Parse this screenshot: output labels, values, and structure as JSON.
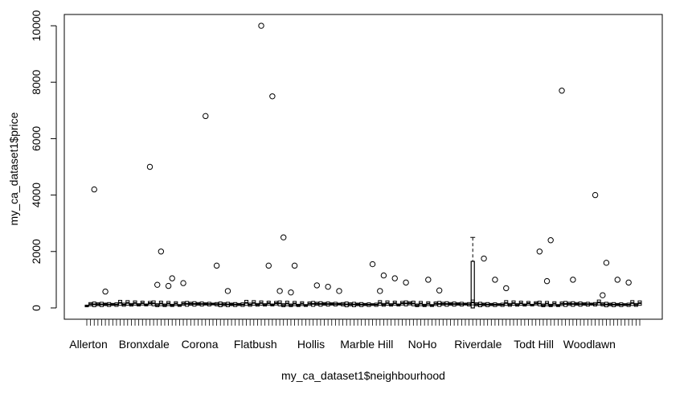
{
  "chart_data": {
    "type": "boxplot",
    "xlabel": "my_ca_dataset1$neighbourhood",
    "ylabel": "my_ca_dataset1$price",
    "ylim": [
      -400,
      10400
    ],
    "yticks": [
      0,
      2000,
      4000,
      6000,
      8000,
      10000
    ],
    "x_tick_labels_shown": [
      "Allerton",
      "Bronxdale",
      "Corona",
      "Flatbush",
      "Hollis",
      "Marble Hill",
      "NoHo",
      "Riverdale",
      "Todt Hill",
      "Woodlawn"
    ],
    "outliers": [
      {
        "category": "Allerton",
        "values": [
          4200,
          580
        ]
      },
      {
        "category": "Bronxdale",
        "values": [
          5000,
          2000,
          1050,
          880,
          820,
          780
        ]
      },
      {
        "category": "Corona",
        "values": [
          6800,
          1500,
          600
        ]
      },
      {
        "category": "Flatbush",
        "values": [
          10000,
          7500,
          2500,
          1500,
          1500,
          600,
          550
        ]
      },
      {
        "category": "Hollis",
        "values": [
          800,
          750,
          600
        ]
      },
      {
        "category": "Marble Hill",
        "values": [
          1550,
          1150,
          1050,
          900,
          600
        ]
      },
      {
        "category": "NoHo",
        "values": [
          1000,
          620
        ]
      },
      {
        "category": "Riverdale",
        "values": [
          1750,
          1000,
          700
        ]
      },
      {
        "category": "Todt Hill",
        "values": [
          2000,
          2400,
          7700,
          1000,
          950
        ]
      },
      {
        "category": "Woodlawn",
        "values": [
          4000,
          1600,
          1000,
          900,
          450
        ]
      }
    ],
    "highlighted_box": {
      "category": "Riverdale",
      "whisker_high": 2500,
      "q3": 1650
    }
  }
}
